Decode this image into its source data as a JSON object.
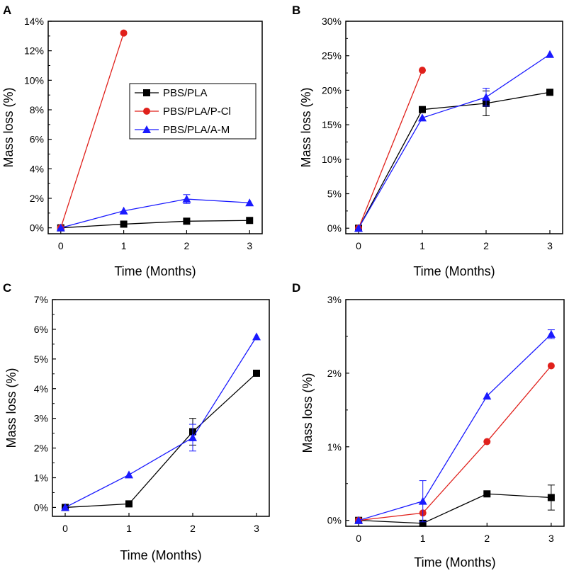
{
  "chart_data": [
    {
      "panel": "A",
      "type": "line",
      "xlabel": "Time (Months)",
      "ylabel": "Mass loss (%)",
      "xlim": [
        -0.2,
        3.2
      ],
      "ylim": [
        -0.4,
        14.0
      ],
      "xticks": [
        0,
        1,
        2,
        3
      ],
      "xtick_labels": [
        "0",
        "1",
        "2",
        "3"
      ],
      "yticks": [
        0,
        2,
        4,
        6,
        8,
        10,
        12,
        14
      ],
      "ytick_labels": [
        "0%",
        "2%",
        "4%",
        "6%",
        "8%",
        "10%",
        "12%",
        "14%"
      ],
      "legend": true,
      "legend_position": "middle-right",
      "series": [
        {
          "name": "PBS/PLA",
          "color": "#000000",
          "marker": "square",
          "x": [
            0,
            1,
            2,
            3
          ],
          "y": [
            0,
            0.25,
            0.45,
            0.5
          ],
          "err": [
            0,
            0,
            0,
            0
          ]
        },
        {
          "name": "PBS/PLA/P-Cl",
          "color": "#e0201b",
          "marker": "circle",
          "x": [
            0,
            1
          ],
          "y": [
            0,
            13.2
          ],
          "err": [
            0,
            0
          ]
        },
        {
          "name": "PBS/PLA/A-M",
          "color": "#1a1aff",
          "marker": "triangle",
          "x": [
            0,
            1,
            2,
            3
          ],
          "y": [
            0,
            1.15,
            1.95,
            1.7
          ],
          "err": [
            0,
            0,
            0.3,
            0
          ]
        }
      ]
    },
    {
      "panel": "B",
      "type": "line",
      "xlabel": "Time (Months)",
      "ylabel": "Mass loss (%)",
      "xlim": [
        -0.2,
        3.2
      ],
      "ylim": [
        -0.8,
        30.0
      ],
      "xticks": [
        0,
        1,
        2,
        3
      ],
      "xtick_labels": [
        "0",
        "1",
        "2",
        "3"
      ],
      "yticks": [
        0,
        5,
        10,
        15,
        20,
        25,
        30
      ],
      "ytick_labels": [
        "0%",
        "5%",
        "10%",
        "15%",
        "20%",
        "25%",
        "30%"
      ],
      "legend": false,
      "series": [
        {
          "name": "PBS/PLA",
          "color": "#000000",
          "marker": "square",
          "x": [
            0,
            1,
            2,
            3
          ],
          "y": [
            0,
            17.2,
            18.1,
            19.7
          ],
          "err": [
            0,
            0,
            1.8,
            0
          ]
        },
        {
          "name": "PBS/PLA/P-Cl",
          "color": "#e0201b",
          "marker": "circle",
          "x": [
            0,
            1
          ],
          "y": [
            0,
            22.9
          ],
          "err": [
            0,
            0
          ]
        },
        {
          "name": "PBS/PLA/A-M",
          "color": "#1a1aff",
          "marker": "triangle",
          "x": [
            0,
            1,
            2,
            3
          ],
          "y": [
            0,
            16.0,
            19.0,
            25.2
          ],
          "err": [
            0,
            0,
            1.3,
            0
          ]
        }
      ]
    },
    {
      "panel": "C",
      "type": "line",
      "xlabel": "Time (Months)",
      "ylabel": "Mass loss (%)",
      "xlim": [
        -0.2,
        3.2
      ],
      "ylim": [
        -0.3,
        7.0
      ],
      "xticks": [
        0,
        1,
        2,
        3
      ],
      "xtick_labels": [
        "0",
        "1",
        "2",
        "3"
      ],
      "yticks": [
        0,
        1,
        2,
        3,
        4,
        5,
        6,
        7
      ],
      "ytick_labels": [
        "0%",
        "1%",
        "2%",
        "3%",
        "4%",
        "5%",
        "6%",
        "7%"
      ],
      "legend": false,
      "series": [
        {
          "name": "PBS/PLA",
          "color": "#000000",
          "marker": "square",
          "x": [
            0,
            1,
            2,
            3
          ],
          "y": [
            0,
            0.12,
            2.55,
            4.52
          ],
          "err": [
            0,
            0,
            0.45,
            0
          ]
        },
        {
          "name": "PBS/PLA/A-M",
          "color": "#1a1aff",
          "marker": "triangle",
          "x": [
            0,
            1,
            2,
            3
          ],
          "y": [
            0,
            1.1,
            2.35,
            5.75
          ],
          "err": [
            0,
            0,
            0.45,
            0
          ]
        }
      ]
    },
    {
      "panel": "D",
      "type": "line",
      "xlabel": "Time (Months)",
      "ylabel": "Mass loss (%)",
      "xlim": [
        -0.2,
        3.2
      ],
      "ylim": [
        -0.08,
        3.0
      ],
      "xticks": [
        0,
        1,
        2,
        3
      ],
      "xtick_labels": [
        "0",
        "1",
        "2",
        "3"
      ],
      "yticks": [
        0,
        1,
        2,
        3
      ],
      "ytick_labels": [
        "0%",
        "1%",
        "2%",
        "3%"
      ],
      "legend": false,
      "series": [
        {
          "name": "PBS/PLA",
          "color": "#000000",
          "marker": "square",
          "x": [
            0,
            1,
            2,
            3
          ],
          "y": [
            0,
            -0.04,
            0.36,
            0.31
          ],
          "err": [
            0,
            0,
            0,
            0.17
          ]
        },
        {
          "name": "PBS/PLA/P-Cl",
          "color": "#e0201b",
          "marker": "circle",
          "x": [
            0,
            1,
            2,
            3
          ],
          "y": [
            0,
            0.1,
            1.07,
            2.1
          ],
          "err": [
            0,
            0,
            0,
            0
          ]
        },
        {
          "name": "PBS/PLA/A-M",
          "color": "#1a1aff",
          "marker": "triangle",
          "x": [
            0,
            1,
            2,
            3
          ],
          "y": [
            0,
            0.26,
            1.69,
            2.53
          ],
          "err": [
            0,
            0.28,
            0,
            0.06
          ]
        }
      ]
    }
  ],
  "legend": {
    "entries": [
      {
        "label": "PBS/PLA",
        "color": "#000000",
        "marker": "square"
      },
      {
        "label": "PBS/PLA/P-Cl",
        "color": "#e0201b",
        "marker": "circle"
      },
      {
        "label": "PBS/PLA/A-M",
        "color": "#1a1aff",
        "marker": "triangle"
      }
    ]
  }
}
